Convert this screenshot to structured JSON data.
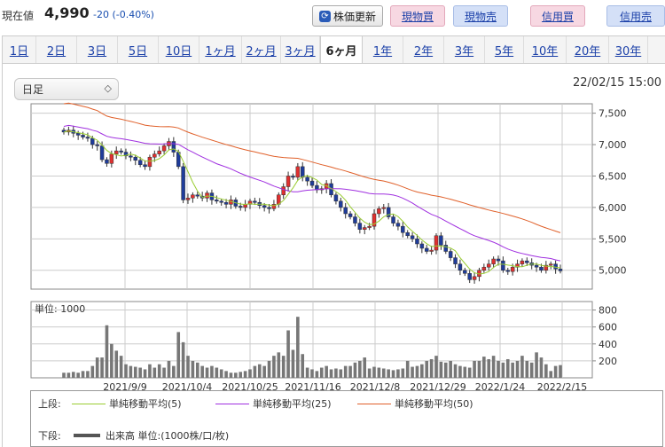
{
  "header": {
    "price_label": "現在値",
    "price_value": "4,990",
    "price_change": "-20 (-0.40%)",
    "refresh_label": "株価更新",
    "buttons": [
      "現物買",
      "現物売",
      "信用買",
      "信用売"
    ]
  },
  "tabs": [
    "1日",
    "2日",
    "3日",
    "5日",
    "10日",
    "1ヶ月",
    "2ヶ月",
    "3ヶ月",
    "6ヶ月",
    "1年",
    "2年",
    "3年",
    "5年",
    "10年",
    "20年",
    "30年"
  ],
  "active_tab": "6ヶ月",
  "period_select": "日足",
  "datetime": "22/02/15 15:00",
  "unit_label": "単位: 1000",
  "legend": {
    "upper_label": "上段:",
    "lower_label": "下段:",
    "ma5": "単純移動平均(5)",
    "ma25": "単純移動平均(25)",
    "ma50": "単純移動平均(50)",
    "volume": "出来高 単位:(1000株/口/枚)"
  },
  "colors": {
    "up": "#e03030",
    "down": "#1f3c9a",
    "ma5": "#9acd32",
    "ma25": "#a030e0",
    "ma50": "#e0602a"
  },
  "chart_data": {
    "type": "candlestick",
    "x_labels": [
      "2021/9/9",
      "2021/10/4",
      "2021/10/25",
      "2021/11/16",
      "2021/12/8",
      "2021/12/29",
      "2022/1/24",
      "2022/2/15"
    ],
    "price_ticks": [
      5000,
      5500,
      6000,
      6500,
      7000,
      7500
    ],
    "price_ylim": [
      4700,
      7650
    ],
    "volume_ticks": [
      200,
      400,
      600,
      800
    ],
    "volume_ylim": [
      0,
      900
    ],
    "close": [
      7200,
      7230,
      7180,
      7150,
      7120,
      7100,
      7000,
      6980,
      6760,
      6700,
      6850,
      6900,
      6880,
      6820,
      6800,
      6750,
      6680,
      6650,
      6800,
      6850,
      6900,
      6980,
      7050,
      6880,
      6650,
      6120,
      6150,
      6200,
      6180,
      6150,
      6230,
      6120,
      6100,
      6080,
      6050,
      6120,
      6020,
      6000,
      6050,
      6100,
      6080,
      6030,
      6000,
      5980,
      6050,
      6200,
      6330,
      6500,
      6480,
      6650,
      6480,
      6420,
      6350,
      6280,
      6300,
      6380,
      6200,
      6100,
      6000,
      5900,
      5850,
      5750,
      5650,
      5680,
      5700,
      5900,
      5980,
      6000,
      5850,
      5750,
      5700,
      5600,
      5550,
      5500,
      5420,
      5350,
      5300,
      5320,
      5550,
      5400,
      5300,
      5200,
      5100,
      5000,
      4950,
      4850,
      4900,
      5000,
      5050,
      5100,
      5180,
      5150,
      5000,
      4980,
      5050,
      5100,
      5150,
      5120,
      5080,
      5050,
      5000,
      5080,
      5100,
      5020,
      4990
    ],
    "volume": [
      60,
      60,
      70,
      60,
      80,
      80,
      140,
      240,
      240,
      620,
      400,
      320,
      260,
      160,
      140,
      130,
      120,
      100,
      160,
      120,
      160,
      120,
      200,
      140,
      540,
      420,
      260,
      200,
      180,
      140,
      120,
      140,
      120,
      100,
      80,
      60,
      60,
      70,
      80,
      100,
      140,
      160,
      140,
      200,
      260,
      300,
      260,
      560,
      330,
      720,
      280,
      120,
      100,
      80,
      120,
      140,
      100,
      110,
      100,
      140,
      140,
      180,
      200,
      240,
      110,
      130,
      120,
      110,
      100,
      90,
      100,
      110,
      200,
      130,
      140,
      160,
      200,
      220,
      260,
      190,
      180,
      200,
      160,
      140,
      130,
      120,
      200,
      200,
      250,
      220,
      260,
      200,
      180,
      220,
      180,
      200,
      260,
      200,
      180,
      300,
      240,
      160,
      80,
      140,
      150
    ]
  }
}
